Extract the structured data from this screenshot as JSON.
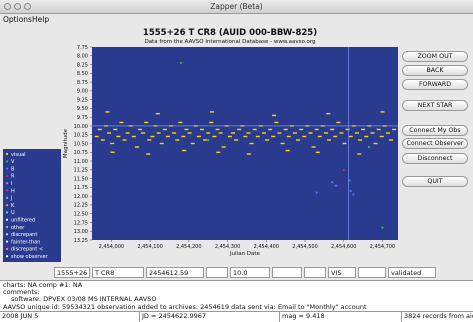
{
  "window": {
    "title": "Zapper (Beta)"
  },
  "menu": [
    "Options",
    "Help"
  ],
  "chart_data": {
    "type": "scatter",
    "title": "1555+26   T CR8   (AUID 000-BBW-825)",
    "subtitle": "Data from the AAVSO International Database - www.aavso.org",
    "xlabel": "Julian Date",
    "ylabel": "Magnitude",
    "xlim": [
      2453950,
      2454740
    ],
    "ylim": [
      13.25,
      7.75
    ],
    "y_inverted": true,
    "xticks": [
      2454000,
      2454100,
      2454200,
      2454300,
      2454400,
      2454500,
      2454600,
      2454700
    ],
    "xtick_labels": [
      "2,454,000",
      "2,454,100",
      "2,454,200",
      "2,454,300",
      "2,454,400",
      "2,454,500",
      "2,454,600",
      "2,454,700"
    ],
    "yticks": [
      "7.75",
      "8.00",
      "8.25",
      "8.50",
      "8.75",
      "9.00",
      "9.25",
      "9.50",
      "9.75",
      "10.00",
      "10.25",
      "10.50",
      "10.75",
      "11.00",
      "11.25",
      "11.50",
      "11.75",
      "12.00",
      "12.25",
      "12.50",
      "12.75",
      "13.00",
      "13.25"
    ],
    "selected_point": {
      "jd": 2454612.59,
      "mag": 10.0
    },
    "series": [
      {
        "name": "visual",
        "color": "#ffd800",
        "points": [
          [
            2453962,
            10.3
          ],
          [
            2453970,
            10.1
          ],
          [
            2453978,
            10.4
          ],
          [
            2453986,
            10.0
          ],
          [
            2453994,
            10.2
          ],
          [
            2454002,
            10.5
          ],
          [
            2454010,
            10.1
          ],
          [
            2454018,
            10.3
          ],
          [
            2454026,
            9.9
          ],
          [
            2454034,
            10.4
          ],
          [
            2454042,
            10.2
          ],
          [
            2454050,
            10.0
          ],
          [
            2454058,
            10.3
          ],
          [
            2454066,
            10.6
          ],
          [
            2454074,
            10.1
          ],
          [
            2454082,
            10.2
          ],
          [
            2454090,
            9.9
          ],
          [
            2454098,
            10.4
          ],
          [
            2454106,
            10.3
          ],
          [
            2454114,
            10.0
          ],
          [
            2454122,
            10.2
          ],
          [
            2454130,
            10.5
          ],
          [
            2454138,
            10.1
          ],
          [
            2454146,
            10.3
          ],
          [
            2454154,
            10.0
          ],
          [
            2454162,
            10.2
          ],
          [
            2454170,
            10.4
          ],
          [
            2454178,
            9.9
          ],
          [
            2454186,
            10.3
          ],
          [
            2454194,
            10.1
          ],
          [
            2454202,
            10.2
          ],
          [
            2454210,
            10.5
          ],
          [
            2454218,
            10.0
          ],
          [
            2454226,
            10.3
          ],
          [
            2454234,
            10.1
          ],
          [
            2454242,
            10.4
          ],
          [
            2454250,
            10.2
          ],
          [
            2454258,
            9.9
          ],
          [
            2454266,
            10.3
          ],
          [
            2454274,
            10.1
          ],
          [
            2454282,
            10.2
          ],
          [
            2454290,
            10.6
          ],
          [
            2454298,
            10.0
          ],
          [
            2454306,
            10.3
          ],
          [
            2454314,
            10.2
          ],
          [
            2454322,
            10.4
          ],
          [
            2454330,
            10.1
          ],
          [
            2454338,
            10.0
          ],
          [
            2454346,
            10.3
          ],
          [
            2454354,
            10.2
          ],
          [
            2454362,
            10.5
          ],
          [
            2454370,
            10.1
          ],
          [
            2454378,
            10.3
          ],
          [
            2454386,
            10.0
          ],
          [
            2454394,
            10.2
          ],
          [
            2454402,
            10.4
          ],
          [
            2454410,
            10.1
          ],
          [
            2454418,
            10.3
          ],
          [
            2454426,
            9.9
          ],
          [
            2454434,
            10.2
          ],
          [
            2454442,
            10.5
          ],
          [
            2454450,
            10.1
          ],
          [
            2454458,
            10.3
          ],
          [
            2454466,
            10.0
          ],
          [
            2454474,
            10.2
          ],
          [
            2454482,
            10.4
          ],
          [
            2454490,
            10.1
          ],
          [
            2454498,
            10.3
          ],
          [
            2454506,
            10.0
          ],
          [
            2454514,
            10.2
          ],
          [
            2454522,
            10.6
          ],
          [
            2454530,
            10.1
          ],
          [
            2454538,
            10.3
          ],
          [
            2454546,
            10.0
          ],
          [
            2454554,
            10.2
          ],
          [
            2454562,
            10.4
          ],
          [
            2454570,
            10.1
          ],
          [
            2454578,
            10.3
          ],
          [
            2454586,
            9.9
          ],
          [
            2454594,
            10.2
          ],
          [
            2454602,
            10.5
          ],
          [
            2454610,
            10.1
          ],
          [
            2454618,
            10.3
          ],
          [
            2454626,
            10.0
          ],
          [
            2454634,
            10.2
          ],
          [
            2454642,
            10.4
          ],
          [
            2454650,
            10.1
          ],
          [
            2454658,
            10.3
          ],
          [
            2454666,
            10.0
          ],
          [
            2454674,
            10.2
          ],
          [
            2454682,
            10.5
          ],
          [
            2454690,
            10.1
          ],
          [
            2454698,
            10.3
          ],
          [
            2454706,
            10.0
          ],
          [
            2454714,
            10.2
          ],
          [
            2454722,
            10.4
          ],
          [
            2454730,
            10.1
          ],
          [
            2454003,
            10.75
          ],
          [
            2454095,
            10.8
          ],
          [
            2454188,
            10.7
          ],
          [
            2454276,
            10.75
          ],
          [
            2454355,
            10.8
          ],
          [
            2454455,
            10.7
          ],
          [
            2454533,
            10.75
          ],
          [
            2454640,
            10.8
          ],
          [
            2453990,
            9.6
          ],
          [
            2454120,
            9.65
          ],
          [
            2454260,
            9.6
          ],
          [
            2454420,
            9.7
          ],
          [
            2454560,
            9.65
          ],
          [
            2454700,
            9.6
          ]
        ]
      },
      {
        "name": "V",
        "color": "#3cb84a",
        "points": [
          [
            2454180,
            8.2
          ],
          [
            2454665,
            10.6
          ],
          [
            2454700,
            12.9
          ],
          [
            2454250,
            10.4
          ]
        ]
      },
      {
        "name": "B",
        "color": "#4a78ff",
        "points": [
          [
            2454615,
            11.55
          ],
          [
            2454618,
            11.85
          ],
          [
            2454580,
            11.7
          ],
          [
            2454530,
            11.9
          ],
          [
            2454625,
            11.95
          ],
          [
            2454570,
            11.6
          ]
        ]
      },
      {
        "name": "R",
        "color": "#e03020",
        "points": [
          [
            2454600,
            11.25
          ]
        ]
      }
    ],
    "legend": [
      "visual",
      "V",
      "B",
      "R",
      "I",
      "H",
      "J",
      "K",
      "U",
      "unfiltered",
      "other",
      "discrepant",
      "fainter-than",
      "discrepant <",
      "show observer"
    ],
    "legend_colors": [
      "#ffd800",
      "#3cb84a",
      "#4a78ff",
      "#e03020",
      "#d070e0",
      "#c03080",
      "#70c0ff",
      "#ff9900",
      "#60e0a0",
      "#ffffff",
      "#b0b0b0",
      "#ffd0d0",
      "#ffffff",
      "#ff8080",
      "#ffffff"
    ]
  },
  "buttons": {
    "zoom_out": "ZOOM OUT",
    "back": "BACK",
    "forward": "FORWARD",
    "next_star": "NEXT STAR",
    "connect_my_obs": "Connect My Obs",
    "connect_observer": "Connect Observer",
    "disconnect": "Disconnect",
    "quit": "QUIT"
  },
  "fields": {
    "star_id": "1555+26",
    "star_name": "T CR8",
    "jd": "2454612.59",
    "blank1": "",
    "magnitude": "10.0",
    "blank2": "",
    "blank3": "",
    "band": "VIS",
    "blank4": "",
    "status": "validated"
  },
  "info": {
    "line1": "charts: NA   comp #1: NA",
    "line2": "comments:",
    "line3": "software: DPVEX 03/08 MS INTERNAL AAVSO",
    "line4": "AAVSO unique id: 59534321   observation added to archives: 2454619   data sent via: Email to \"Monthly\" account"
  },
  "statusbar": {
    "date": "2008 JUN 5",
    "jd": "JD = 2454622.9967",
    "mag": "mag = 9.418",
    "records": "3824 records from aid"
  }
}
